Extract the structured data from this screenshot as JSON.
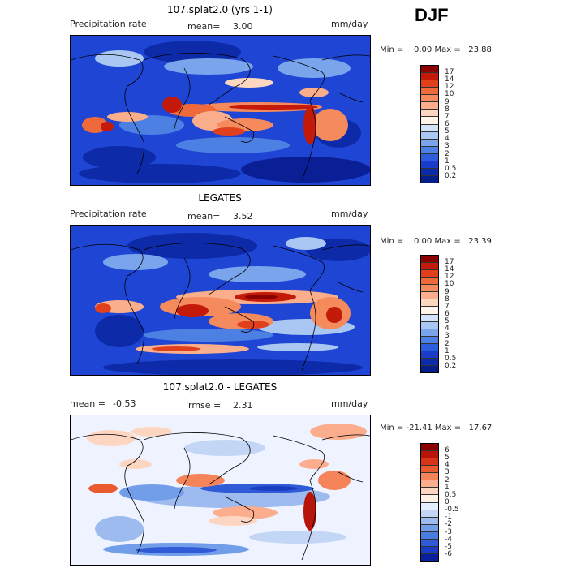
{
  "season": "DJF",
  "panels": [
    {
      "title": "107.splat2.0 (yrs 1-1)",
      "left_label": "Precipitation rate",
      "mean_label": "mean=",
      "mean_value": "3.00",
      "units": "mm/day",
      "min_max": "Min =    0.00 Max =   23.88",
      "colorbar": {
        "levels": [
          "17",
          "14",
          "12",
          "10",
          "9",
          "8",
          "7",
          "6",
          "5",
          "4",
          "3",
          "2",
          "1",
          "0.5",
          "0.2"
        ],
        "colors": [
          "#8b0000",
          "#c41a0a",
          "#e0401c",
          "#ef6a3a",
          "#f58a5c",
          "#fbae8c",
          "#fdd7bf",
          "#fff5ea",
          "#d2e3f8",
          "#a9c7f2",
          "#7aa5ec",
          "#4d80e3",
          "#2c5ddb",
          "#1a3dc9",
          "#0d2aa8",
          "#061e8a"
        ]
      }
    },
    {
      "title": "LEGATES",
      "left_label": "Precipitation rate",
      "mean_label": "mean=",
      "mean_value": "3.52",
      "units": "mm/day",
      "min_max": "Min =    0.00 Max =   23.39",
      "colorbar": {
        "levels": [
          "17",
          "14",
          "12",
          "10",
          "9",
          "8",
          "7",
          "6",
          "5",
          "4",
          "3",
          "2",
          "1",
          "0.5",
          "0.2"
        ],
        "colors": [
          "#8b0000",
          "#c41a0a",
          "#e0401c",
          "#ef6a3a",
          "#f58a5c",
          "#fbae8c",
          "#fdd7bf",
          "#fff5ea",
          "#d2e3f8",
          "#a9c7f2",
          "#7aa5ec",
          "#4d80e3",
          "#2c5ddb",
          "#1a3dc9",
          "#0d2aa8",
          "#061e8a"
        ]
      }
    },
    {
      "title": "107.splat2.0 - LEGATES",
      "mean_label": "mean =",
      "mean_value": "-0.53",
      "rmse_label": "rmse =",
      "rmse_value": "2.31",
      "units": "mm/day",
      "min_max": "Min = -21.41 Max =   17.67",
      "colorbar": {
        "levels": [
          "6",
          "5",
          "4",
          "3",
          "2",
          "1",
          "0.5",
          "0",
          "-0.5",
          "-1",
          "-2",
          "-3",
          "-4",
          "-5",
          "-6"
        ],
        "colors": [
          "#8b0000",
          "#b8150a",
          "#d83418",
          "#ea5a30",
          "#f5845a",
          "#fbad8e",
          "#fdd6c2",
          "#fff1e6",
          "#e6efff",
          "#c3d6f6",
          "#9dbbef",
          "#729de8",
          "#4b7de0",
          "#2f5bd6",
          "#1a3cc2",
          "#0a1f9c"
        ]
      }
    }
  ]
}
